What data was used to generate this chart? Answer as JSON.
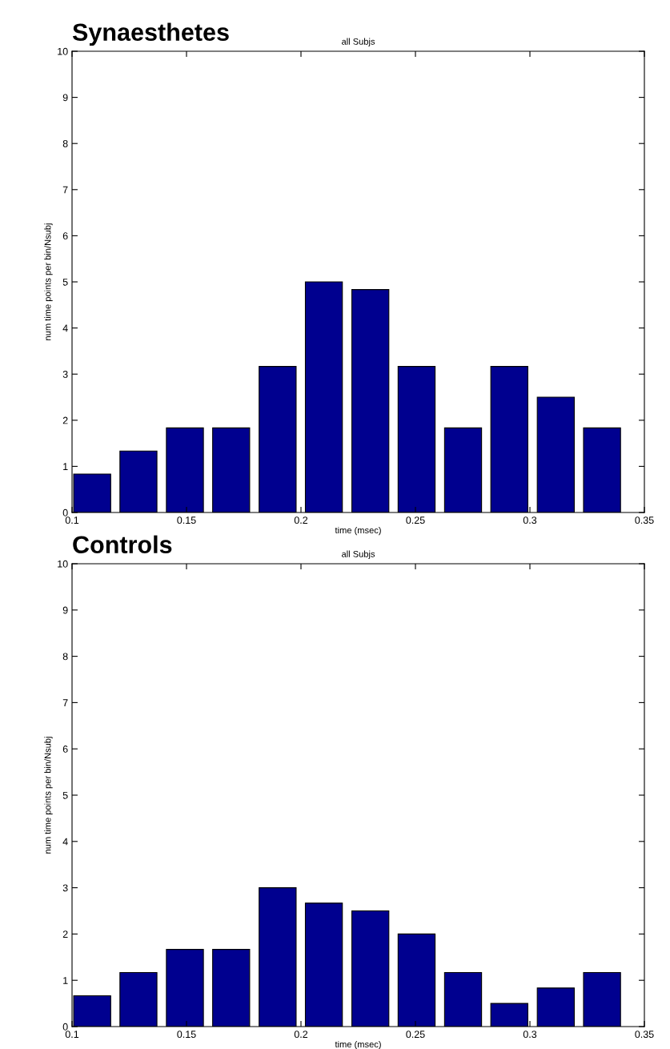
{
  "chart_data": [
    {
      "type": "bar",
      "title": "Synaesthetes",
      "subtitle": "all Subjs",
      "xlabel": "time (msec)",
      "ylabel": "num time points per bin/Nsubj",
      "x": [
        0.1088,
        0.129,
        0.1493,
        0.1695,
        0.1898,
        0.21,
        0.2303,
        0.2505,
        0.2708,
        0.291,
        0.3113,
        0.3315
      ],
      "values": [
        0.833,
        1.333,
        1.833,
        1.833,
        3.167,
        5,
        4.833,
        3.167,
        1.833,
        3.167,
        2.5,
        1.833
      ],
      "color": "#00008f",
      "xlim": [
        0.1,
        0.35
      ],
      "xticks": [
        0.1,
        0.15,
        0.2,
        0.25,
        0.3,
        0.35
      ],
      "ylim": [
        0,
        10
      ],
      "yticks": [
        0,
        1,
        2,
        3,
        4,
        5,
        6,
        7,
        8,
        9,
        10
      ],
      "grid": false,
      "legend": false
    },
    {
      "type": "bar",
      "title": "Controls",
      "subtitle": "all Subjs",
      "xlabel": "time (msec)",
      "ylabel": "num time points per bin/Nsubj",
      "x": [
        0.1088,
        0.129,
        0.1493,
        0.1695,
        0.1898,
        0.21,
        0.2303,
        0.2505,
        0.2708,
        0.291,
        0.3113,
        0.3315
      ],
      "values": [
        0.667,
        1.167,
        1.667,
        1.667,
        3,
        2.667,
        2.5,
        2,
        1.167,
        0.5,
        0.833,
        1.167
      ],
      "color": "#00008f",
      "xlim": [
        0.1,
        0.35
      ],
      "xticks": [
        0.1,
        0.15,
        0.2,
        0.25,
        0.3,
        0.35
      ],
      "ylim": [
        0,
        10
      ],
      "yticks": [
        0,
        1,
        2,
        3,
        4,
        5,
        6,
        7,
        8,
        9,
        10
      ],
      "grid": false,
      "legend": false
    }
  ]
}
